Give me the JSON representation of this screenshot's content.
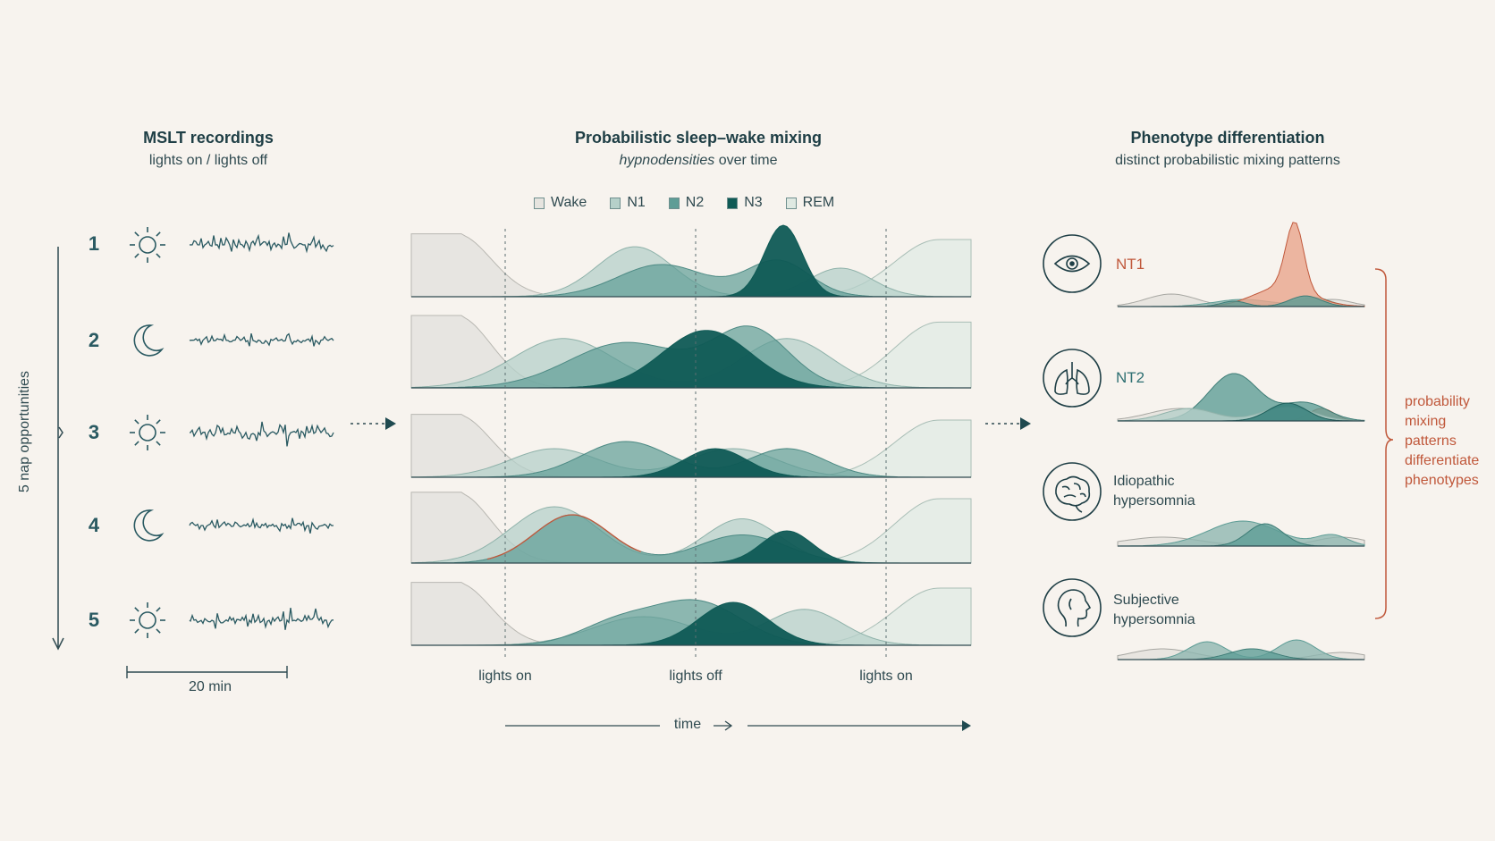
{
  "left": {
    "title": "MSLT recordings",
    "subtitle": "lights on / lights off",
    "axis_label": "5 nap opportunities",
    "scale_label": "20 min",
    "naps": [
      {
        "number": "1",
        "icon": "sun-icon"
      },
      {
        "number": "2",
        "icon": "moon-icon"
      },
      {
        "number": "3",
        "icon": "sun-icon"
      },
      {
        "number": "4",
        "icon": "moon-icon"
      },
      {
        "number": "5",
        "icon": "sun-icon"
      }
    ]
  },
  "middle": {
    "title": "Probabilistic sleep–wake mixing",
    "subtitle_italic": "hypnodensities",
    "subtitle_rest": " over time",
    "legend": [
      {
        "label": "Wake",
        "color": "#e6e4df"
      },
      {
        "label": "N1",
        "color": "#b5d0c9"
      },
      {
        "label": "N2",
        "color": "#5e9d96"
      },
      {
        "label": "N3",
        "color": "#0f5a55"
      },
      {
        "label": "REM",
        "color": "#dfe9e2"
      }
    ],
    "ticks": [
      "lights on",
      "lights off",
      "lights on"
    ],
    "time_label": "time"
  },
  "right": {
    "title": "Phenotype differentiation",
    "subtitle": "distinct probabilistic mixing patterns",
    "phenotypes": [
      {
        "line1": "NT1",
        "line2": "",
        "icon": "eye-icon"
      },
      {
        "line1": "NT2",
        "line2": "",
        "icon": "lungs-icon"
      },
      {
        "line1": "Idiopathic",
        "line2": "hypersomnia",
        "icon": "brain-icon"
      },
      {
        "line1": "Subjective",
        "line2": "hypersomnia",
        "icon": "head-profile-icon"
      }
    ],
    "bracket_note": [
      "probability",
      "mixing",
      "patterns",
      "differentiate",
      "phenotypes"
    ]
  },
  "colors": {
    "accent": "#c0583b",
    "teal_dark": "#0f5a55",
    "teal_mid": "#5e9d96",
    "teal_light": "#b5d0c9"
  }
}
